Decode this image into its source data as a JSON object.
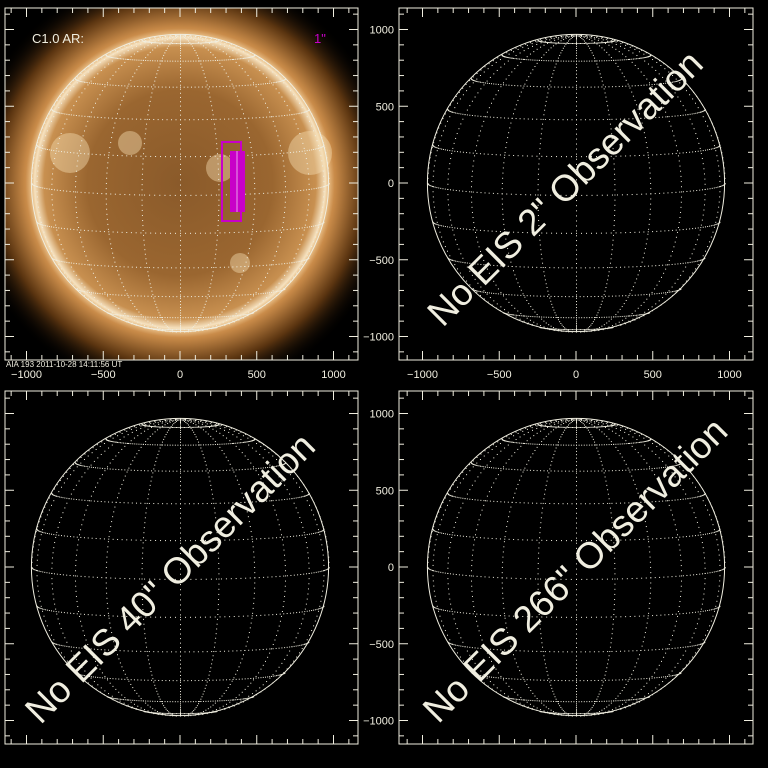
{
  "panels": [
    {
      "id": "aia",
      "label": "C1.0 AR:",
      "slit_label": "1\"",
      "caption": "AIA 193   2011-10-28 14:11:56 UT",
      "has_image": true,
      "x_tick_labels": true,
      "y_tick_labels": false,
      "message": ""
    },
    {
      "id": "eis2",
      "message": "No EIS 2\" Observation",
      "has_image": false,
      "x_tick_labels": true,
      "y_tick_labels": true
    },
    {
      "id": "eis40",
      "message": "No EIS 40\" Observation",
      "has_image": false,
      "x_tick_labels": false,
      "y_tick_labels": false
    },
    {
      "id": "eis266",
      "message": "No EIS 266\" Observation",
      "has_image": false,
      "x_tick_labels": false,
      "y_tick_labels": true
    }
  ],
  "axis_ticks": {
    "major": [
      -1000,
      -500,
      0,
      500,
      1000
    ],
    "major_labels": [
      "−1000",
      "−500",
      "0",
      "500",
      "1000"
    ]
  },
  "colors": {
    "axis": "#f0eee0",
    "slit_box": "#c800c8",
    "background": "#000000",
    "sun": "#b07a3a"
  }
}
